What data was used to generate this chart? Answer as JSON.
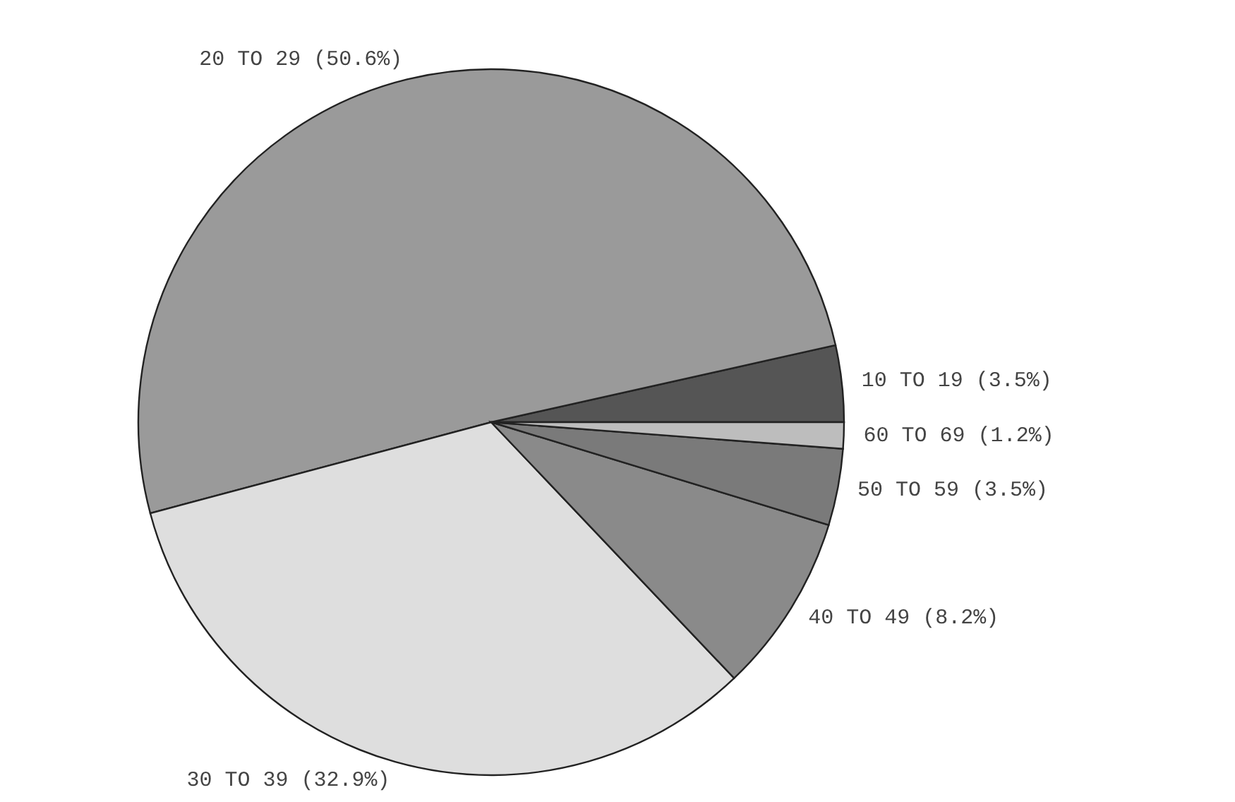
{
  "chart_data": {
    "type": "pie",
    "categories": [
      "10 TO 19",
      "20 TO 29",
      "30 TO 39",
      "40 TO 49",
      "50 TO 59",
      "60 TO 69"
    ],
    "values": [
      3.5,
      50.6,
      32.9,
      8.2,
      3.5,
      1.2
    ],
    "value_labels": [
      "(3.5%)",
      "(50.6%)",
      "(32.9%)",
      "(8.2%)",
      "(3.5%)",
      "(1.2%)"
    ],
    "colors": [
      "#555555",
      "#9a9a9a",
      "#dedede",
      "#8a8a8a",
      "#7a7a7a",
      "#bdbdbd"
    ],
    "legend": false
  }
}
